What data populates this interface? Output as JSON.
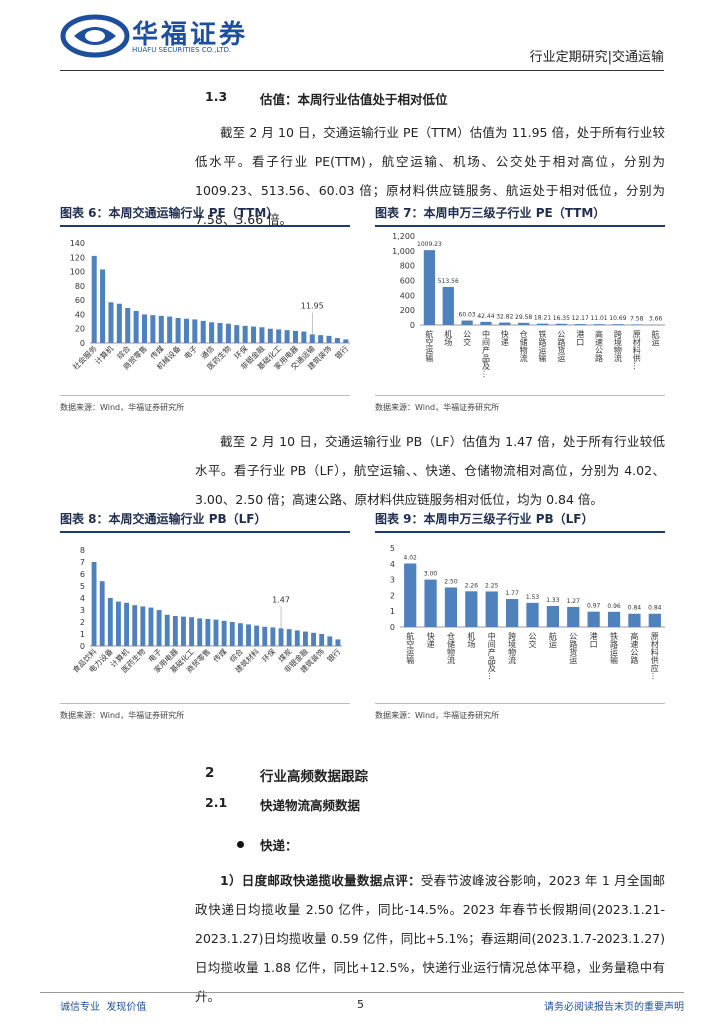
{
  "header": {
    "company": "华福证券",
    "company_en": "HUAFU SECURITIES CO.,LTD.",
    "report": "行业定期研究|交通运输"
  },
  "section_1_3": {
    "number": "1.3",
    "title": "估值：本周行业估值处于相对低位"
  },
  "paragraphs": [
    "截至 2 月 10 日，交通运输行业 PE（TTM）估值为 11.95 倍，处于所有行业较低水平。看子行业 PE(TTM)，航空运输、机场、公交处于相对高位，分别为 1009.23、513.56、60.03 倍；原材料供应链服务、航运处于相对低位，分别为 7.58、3.66 倍。",
    "截至 2 月 10 日，交通运输行业 PB（LF）估值为 1.47 倍，处于所有行业较低水平。看子行业 PB（LF），航空运输、、快递、仓储物流相对高位，分别为 4.02、3.00、2.50 倍；高速公路、原材料供应链服务相对低位，均为 0.84 倍。"
  ],
  "chart_data": [
    {
      "type": "bar",
      "title": "图表 6：本周交通运输行业 PE（TTM）",
      "source": "数据来源：Wind，华福证券研究所",
      "color": "#4f81bd",
      "categories": [
        "社会服务",
        null,
        "计算机",
        null,
        "综合",
        null,
        "商贸零售",
        null,
        "传媒",
        null,
        "机械设备",
        null,
        "电子",
        null,
        "通信",
        null,
        "医药生物",
        null,
        "环保",
        null,
        "非银金融",
        null,
        "基础化工",
        null,
        "家用电器",
        null,
        "交通运输",
        null,
        "建筑装饰",
        null,
        "银行"
      ],
      "values": [
        122,
        103,
        57,
        55,
        49,
        45,
        40,
        39,
        38,
        37,
        35,
        34,
        33,
        31,
        29,
        28,
        27,
        25,
        24,
        23,
        22,
        20,
        19,
        18,
        17,
        16,
        11.95,
        11,
        10,
        7,
        5
      ],
      "value_labels": [
        null,
        null,
        null,
        null,
        null,
        null,
        null,
        null,
        null,
        null,
        null,
        null,
        null,
        null,
        null,
        null,
        null,
        null,
        null,
        null,
        null,
        null,
        null,
        null,
        null,
        null,
        "11.95",
        null,
        null,
        null,
        null
      ],
      "ylim": [
        0,
        140
      ],
      "yticks": [
        0,
        20,
        40,
        60,
        80,
        100,
        120,
        140
      ]
    },
    {
      "type": "bar",
      "title": "图表 7：本周申万三级子行业  PE（TTM）",
      "source": "数据来源：Wind，华福证券研究所",
      "color": "#4f81bd",
      "categories": [
        "航空运输",
        "机场",
        "公交",
        "中间产品及…",
        "快递",
        "仓储物流",
        "铁路运输",
        "公路货运",
        "港口",
        "高速公路",
        "跨境物流",
        "原材料供…",
        "航运"
      ],
      "values": [
        1009.23,
        513.56,
        60.03,
        42.44,
        32.82,
        29.58,
        18.21,
        16.35,
        12.17,
        11.01,
        10.69,
        7.58,
        3.66
      ],
      "value_labels": [
        "1009.23",
        "513.56",
        "60.03",
        "42.44",
        "32.82",
        "29.58",
        "18.21",
        "16.35",
        "12.17",
        "11.01",
        "10.69",
        "7.58",
        "3.66"
      ],
      "ylim": [
        0,
        1200
      ],
      "yticks": [
        0,
        200,
        400,
        600,
        800,
        {
          "value": 1000,
          "label": "1,000"
        },
        {
          "value": 1200,
          "label": "1,200"
        }
      ]
    },
    {
      "type": "bar",
      "title": "图表 8：本周交通运输行业 PB（LF）",
      "source": "数据来源：Wind，华福证券研究所",
      "color": "#4f81bd",
      "categories": [
        "食品饮料",
        null,
        "电力设备",
        null,
        "计算机",
        null,
        "医药生物",
        null,
        "电子",
        null,
        "家用电器",
        null,
        "基础化工",
        null,
        "商贸零售",
        null,
        "传媒",
        null,
        "综合",
        null,
        "建筑材料",
        null,
        "环保",
        null,
        "煤炭",
        null,
        "非银金融",
        null,
        "建筑装饰",
        null,
        "银行"
      ],
      "values": [
        7.0,
        5.4,
        4.0,
        3.7,
        3.6,
        3.4,
        3.3,
        3.2,
        3.0,
        2.6,
        2.5,
        2.45,
        2.4,
        2.3,
        2.25,
        2.2,
        2.1,
        2.0,
        1.9,
        1.8,
        1.7,
        1.6,
        1.55,
        1.47,
        1.4,
        1.3,
        1.2,
        1.1,
        1.0,
        0.8,
        0.55
      ],
      "value_labels": [
        null,
        null,
        null,
        null,
        null,
        null,
        null,
        null,
        null,
        null,
        null,
        null,
        null,
        null,
        null,
        null,
        null,
        null,
        null,
        null,
        null,
        null,
        null,
        "1.47",
        null,
        null,
        null,
        null,
        null,
        null,
        null
      ],
      "ylim": [
        0,
        8
      ],
      "yticks": [
        0,
        1,
        2,
        3,
        4,
        5,
        6,
        7,
        8
      ]
    },
    {
      "type": "bar",
      "title": "图表 9：本周申万三级子行业 PB（LF）",
      "source": "数据来源：Wind，华福证券研究所",
      "color": "#4f81bd",
      "categories": [
        "航空运输",
        "快递",
        "仓储物流",
        "机场",
        "中间产品及…",
        "跨境物流",
        "公交",
        "航运",
        "公路货运",
        "港口",
        "铁路运输",
        "高速公路",
        "原材料供应…"
      ],
      "values": [
        4.02,
        3.0,
        2.5,
        2.26,
        2.25,
        1.77,
        1.53,
        1.33,
        1.27,
        0.97,
        0.96,
        0.84,
        0.84
      ],
      "value_labels": [
        "4.02",
        "3.00",
        "2.50",
        "2.26",
        "2.25",
        "1.77",
        "1.53",
        "1.33",
        "1.27",
        "0.97",
        "0.96",
        "0.84",
        "0.84"
      ],
      "ylim": [
        0,
        5
      ],
      "yticks": [
        0,
        1,
        2,
        3,
        4,
        5
      ]
    }
  ],
  "section_2": {
    "number": "2",
    "title": "行业高频数据跟踪"
  },
  "section_2_1": {
    "number": "2.1",
    "title": "快递物流高频数据"
  },
  "bullet": "快递：",
  "paragraph_3": {
    "lead": "1）日度邮政快递揽收量数据点评：",
    "text": "受春节波峰波谷影响，2023 年 1 月全国邮政快递日均揽收量 2.50 亿件，同比-14.5%。2023 年春节长假期间(2023.1.21-2023.1.27)日均揽收量 0.59 亿件，同比+5.1%；春运期间(2023.1.7-2023.1.27)日均揽收量 1.88 亿件，同比+12.5%，快递行业运行情况总体平稳，业务量稳中有升。"
  },
  "footer": {
    "left": "诚信专业  发现价值",
    "page": "5",
    "right": "请务必阅读报告末页的重要声明"
  }
}
